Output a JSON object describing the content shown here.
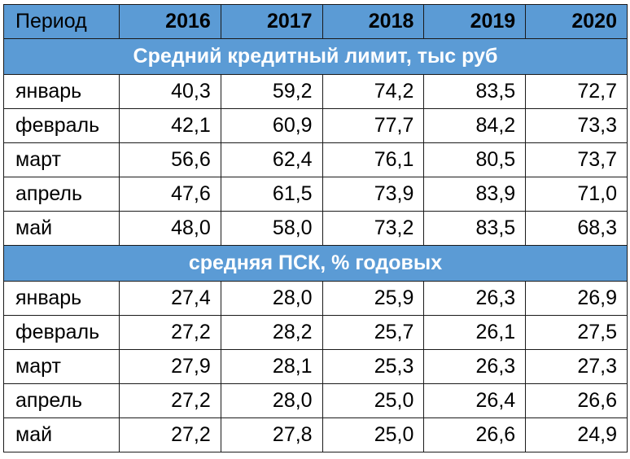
{
  "table": {
    "header": {
      "label": "Период",
      "years": [
        "2016",
        "2017",
        "2018",
        "2019",
        "2020"
      ]
    },
    "sections": [
      {
        "title": "Средний кредитный лимит, тыс руб",
        "rows": [
          {
            "month": "январь",
            "values": [
              "40,3",
              "59,2",
              "74,2",
              "83,5",
              "72,7"
            ]
          },
          {
            "month": "февраль",
            "values": [
              "42,1",
              "60,9",
              "77,7",
              "84,2",
              "73,3"
            ]
          },
          {
            "month": "март",
            "values": [
              "56,6",
              "62,4",
              "76,1",
              "80,5",
              "73,7"
            ]
          },
          {
            "month": "апрель",
            "values": [
              "47,6",
              "61,5",
              "73,9",
              "83,9",
              "71,0"
            ]
          },
          {
            "month": "май",
            "values": [
              "48,0",
              "58,0",
              "73,2",
              "83,5",
              "68,3"
            ]
          }
        ]
      },
      {
        "title": "средняя ПСК, % годовых",
        "rows": [
          {
            "month": "январь",
            "values": [
              "27,4",
              "28,0",
              "25,9",
              "26,3",
              "26,9"
            ]
          },
          {
            "month": "февраль",
            "values": [
              "27,2",
              "28,2",
              "25,7",
              "26,1",
              "27,5"
            ]
          },
          {
            "month": "март",
            "values": [
              "27,9",
              "28,1",
              "25,3",
              "26,3",
              "27,3"
            ]
          },
          {
            "month": "апрель",
            "values": [
              "27,2",
              "28,0",
              "25,0",
              "26,4",
              "26,6"
            ]
          },
          {
            "month": "май",
            "values": [
              "27,2",
              "27,8",
              "25,0",
              "26,6",
              "24,9"
            ]
          }
        ]
      }
    ],
    "colors": {
      "header_bg": "#5b9bd5",
      "header_text": "#ffffff",
      "border": "#1a1a1a"
    }
  }
}
